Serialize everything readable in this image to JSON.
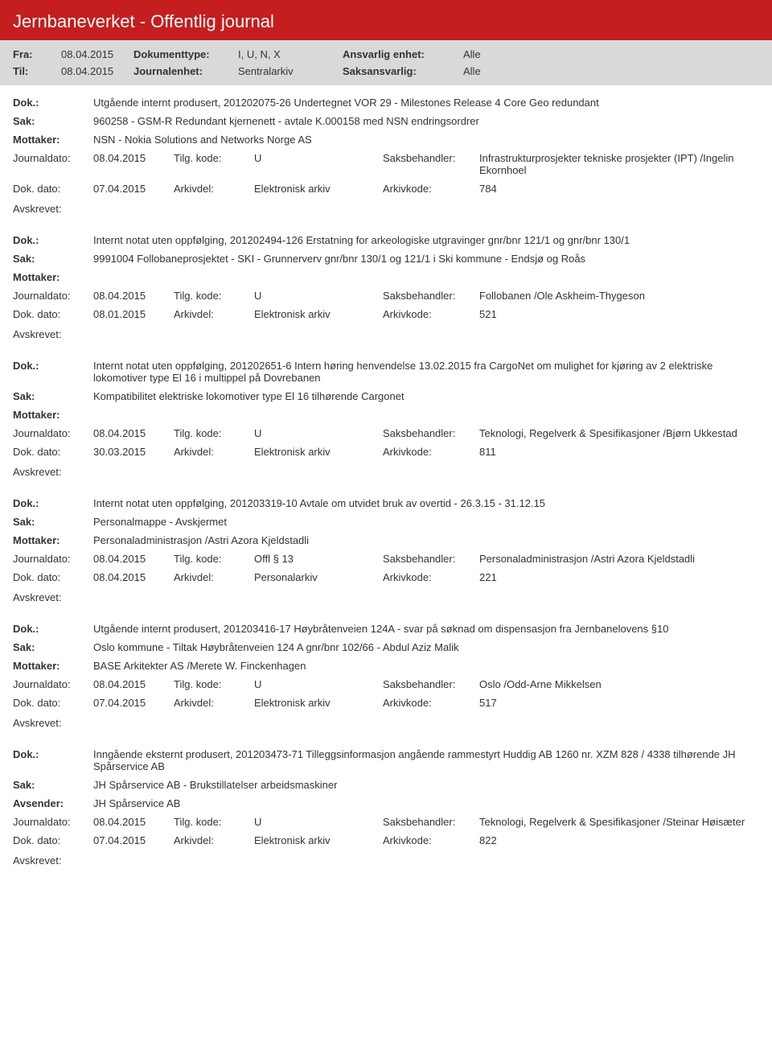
{
  "header": {
    "title": "Jernbaneverket - Offentlig journal"
  },
  "filters": {
    "fra_label": "Fra:",
    "fra_value": "08.04.2015",
    "til_label": "Til:",
    "til_value": "08.04.2015",
    "dokumenttype_label": "Dokumenttype:",
    "dokumenttype_value": "I, U, N, X",
    "journalenhet_label": "Journalenhet:",
    "journalenhet_value": "Sentralarkiv",
    "ansvarlig_label": "Ansvarlig enhet:",
    "ansvarlig_value": "Alle",
    "saksansvarlig_label": "Saksansvarlig:",
    "saksansvarlig_value": "Alle"
  },
  "labels": {
    "dok": "Dok.:",
    "sak": "Sak:",
    "mottaker": "Mottaker:",
    "avsender": "Avsender:",
    "journaldato": "Journaldato:",
    "tilgkode": "Tilg. kode:",
    "saksbehandler": "Saksbehandler:",
    "dokdato": "Dok. dato:",
    "arkivdel": "Arkivdel:",
    "arkivkode": "Arkivkode:",
    "avskrevet": "Avskrevet:"
  },
  "entries": [
    {
      "dok": "Utgående internt produsert, 201202075-26 Undertegnet VOR 29 - Milestones Release 4 Core Geo redundant",
      "sak": "960258 - GSM-R Redundant kjernenett - avtale K.000158 med NSN endringsordrer",
      "party_label": "Mottaker:",
      "party": "NSN - Nokia Solutions and Networks Norge AS",
      "journaldato": "08.04.2015",
      "tilgkode": "U",
      "saksbehandler": "Infrastrukturprosjekter tekniske prosjekter (IPT) /Ingelin Ekornhoel",
      "dokdato": "07.04.2015",
      "arkivdel": "Elektronisk arkiv",
      "arkivkode": "784"
    },
    {
      "dok": "Internt notat uten oppfølging, 201202494-126 Erstatning for arkeologiske utgravinger gnr/bnr 121/1 og gnr/bnr 130/1",
      "sak": "9991004 Follobaneprosjektet - SKI - Grunnerverv gnr/bnr 130/1 og 121/1 i Ski kommune - Endsjø og Roås",
      "party_label": "Mottaker:",
      "party": "",
      "journaldato": "08.04.2015",
      "tilgkode": "U",
      "saksbehandler": "Follobanen /Ole Askheim-Thygeson",
      "dokdato": "08.01.2015",
      "arkivdel": "Elektronisk arkiv",
      "arkivkode": "521"
    },
    {
      "dok": "Internt notat uten oppfølging, 201202651-6 Intern høring henvendelse 13.02.2015 fra CargoNet om mulighet for kjøring av 2 elektriske lokomotiver type El 16 i multippel på Dovrebanen",
      "sak": "Kompatibilitet elektriske lokomotiver type El 16 tilhørende Cargonet",
      "party_label": "Mottaker:",
      "party": "",
      "journaldato": "08.04.2015",
      "tilgkode": "U",
      "saksbehandler": "Teknologi, Regelverk & Spesifikasjoner /Bjørn Ukkestad",
      "dokdato": "30.03.2015",
      "arkivdel": "Elektronisk arkiv",
      "arkivkode": "811"
    },
    {
      "dok": "Internt notat uten oppfølging, 201203319-10 Avtale om utvidet bruk av overtid - 26.3.15 - 31.12.15",
      "sak": "Personalmappe - Avskjermet",
      "party_label": "Mottaker:",
      "party": "Personaladministrasjon /Astri Azora Kjeldstadli",
      "journaldato": "08.04.2015",
      "tilgkode": "Offl § 13",
      "saksbehandler": "Personaladministrasjon /Astri Azora Kjeldstadli",
      "dokdato": "08.04.2015",
      "arkivdel": "Personalarkiv",
      "arkivkode": "221"
    },
    {
      "dok": "Utgående internt produsert, 201203416-17 Høybråtenveien 124A - svar på søknad om dispensasjon fra Jernbanelovens §10",
      "sak": "Oslo kommune - Tiltak Høybråtenveien 124 A gnr/bnr 102/66 - Abdul Aziz Malik",
      "party_label": "Mottaker:",
      "party": "BASE Arkitekter AS /Merete W. Finckenhagen",
      "journaldato": "08.04.2015",
      "tilgkode": "U",
      "saksbehandler": "Oslo /Odd-Arne Mikkelsen",
      "dokdato": "07.04.2015",
      "arkivdel": "Elektronisk arkiv",
      "arkivkode": "517"
    },
    {
      "dok": "Inngående eksternt produsert, 201203473-71 Tilleggsinformasjon angående rammestyrt Huddig AB 1260 nr. XZM 828 / 4338 tilhørende JH Spårservice AB",
      "sak": "JH Spårservice AB - Brukstillatelser arbeidsmaskiner",
      "party_label": "Avsender:",
      "party": "JH Spårservice AB",
      "journaldato": "08.04.2015",
      "tilgkode": "U",
      "saksbehandler": "Teknologi, Regelverk & Spesifikasjoner /Steinar Høisæter",
      "dokdato": "07.04.2015",
      "arkivdel": "Elektronisk arkiv",
      "arkivkode": "822"
    }
  ]
}
